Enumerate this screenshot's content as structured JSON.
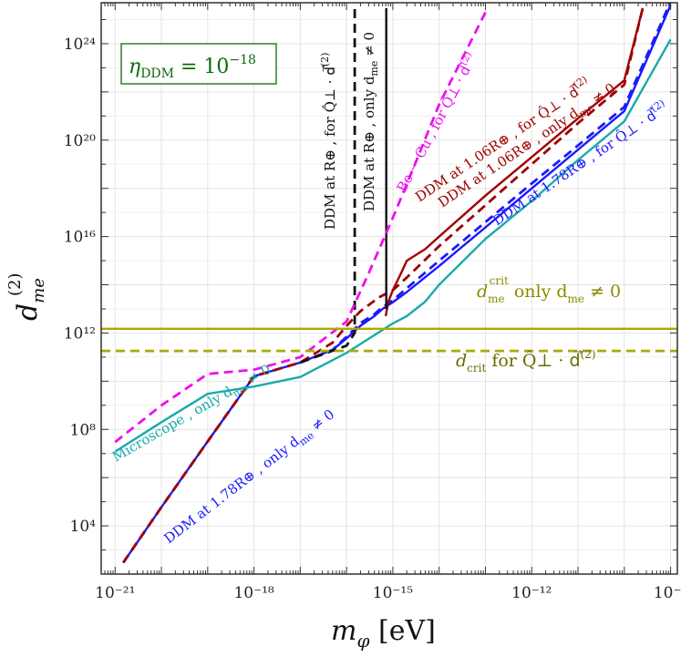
{
  "chart_data": {
    "type": "line",
    "title": "",
    "xlabel": "m_φ [eV]",
    "ylabel": "d_me^(2)",
    "x_scale": "log",
    "y_scale": "log",
    "xlim": [
      5e-22,
      1.4e-09
    ],
    "ylim": [
      100,
      5e+25
    ],
    "grid": true,
    "x_ticks": [
      {
        "value": 1e-21,
        "label": "10⁻²¹"
      },
      {
        "value": 1e-18,
        "label": "10⁻¹⁸"
      },
      {
        "value": 1e-15,
        "label": "10⁻¹⁵"
      },
      {
        "value": 1e-12,
        "label": "10⁻¹²"
      },
      {
        "value": 1e-09,
        "label": "10⁻⁹"
      }
    ],
    "y_ticks": [
      {
        "value": 10000.0,
        "label": "10⁴"
      },
      {
        "value": 100000000.0,
        "label": "10⁸"
      },
      {
        "value": 1000000000000.0,
        "label": "10¹²"
      },
      {
        "value": 1e+16,
        "label": "10¹⁶"
      },
      {
        "value": 1e+20,
        "label": "10²⁰"
      },
      {
        "value": 1e+24,
        "label": "10²⁴"
      }
    ],
    "annotation_box": "η_DDM = 10⁻¹⁸",
    "series": [
      {
        "id": "ddm178_only",
        "label": "DDM at 1.78R⊕ , only d_me ≠ 0",
        "color": "#1a1aff",
        "dash": false,
        "x": [
          1.5e-21,
          1e-20,
          1e-19,
          1e-18,
          1e-17,
          5e-17,
          1e-16,
          2e-16,
          4e-16,
          6e-16,
          1e-15,
          2e-15,
          1e-14,
          1e-13,
          1e-12,
          1e-11,
          1e-10,
          1e-09
        ],
        "y": [
          300.0,
          60000.0,
          32000000.0,
          16000000000.0,
          60000000000.0,
          200000000000.0,
          600000000000.0,
          2000000000000.0,
          5000000000000.0,
          10000000000000.0,
          19000000000000.0,
          50000000000000.0,
          600000000000000.0,
          2.4e+16,
          1e+18,
          4e+19,
          1.6e+21,
          4e+25
        ]
      },
      {
        "id": "ddm178_q",
        "label": "DDM at 1.78R⊕ , for Q̂⊥ · d⃗(2)",
        "color": "#1a1aff",
        "dash": true,
        "x": [
          1.5e-21,
          1e-20,
          1e-19,
          1e-18,
          1e-17,
          5e-17,
          1e-16,
          2e-16,
          4e-16,
          6e-16,
          1e-15,
          1e-14,
          1e-13,
          1e-12,
          1e-11,
          1e-10,
          1e-09
        ],
        "y": [
          300.0,
          60000.0,
          32000000.0,
          16000000000.0,
          60000000000.0,
          200000000000.0,
          700000000000.0,
          2600000000000.0,
          6000000000000.0,
          12000000000000.0,
          23000000000000.0,
          1000000000000000.0,
          4e+16,
          1.6e+18,
          6e+19,
          2.4e+21,
          5.5e+25
        ]
      },
      {
        "id": "ddm106_only",
        "label": "DDM at 1.06R⊕ , only d_me ≠ 0",
        "color": "#a00000",
        "dash": false,
        "x": [
          7e-16,
          8e-16,
          1e-15,
          1.5e-15,
          2e-15,
          5e-15,
          1e-14,
          1e-13,
          1e-12,
          1e-11,
          1e-10,
          2.5e-10
        ],
        "y": [
          5000000000000.0,
          20000000000000.0,
          60000000000000.0,
          300000000000000.0,
          1000000000000000.0,
          3000000000000000.0,
          1e+16,
          5e+17,
          2e+19,
          8e+20,
          3e+22,
          3e+25
        ]
      },
      {
        "id": "ddm106_q",
        "label": "DDM at 1.06R⊕ , for Q̂⊥ · d⃗(2)",
        "color": "#a00000",
        "dash": true,
        "x": [
          1.5e-21,
          1e-20,
          1e-19,
          1e-18,
          1e-17,
          5e-17,
          1e-16,
          2e-16,
          5e-16,
          1e-15,
          2e-15,
          1e-14,
          1e-13,
          1e-12,
          1e-11,
          1e-10,
          2.5e-10
        ],
        "y": [
          300.0,
          60000.0,
          32000000.0,
          16000000000.0,
          60000000000.0,
          400000000000.0,
          2000000000000.0,
          8000000000000.0,
          30000000000000.0,
          60000000000000.0,
          200000000000000.0,
          4000000000000000.0,
          2e+17,
          1e+19,
          5e+20,
          2e+22,
          3e+25
        ]
      },
      {
        "id": "ddm_re_only",
        "label": "DDM at R⊕ , only d_me ≠ 0",
        "color": "#111111",
        "dash": false,
        "x": [
          7.2e-16,
          7.2e-16
        ],
        "y": [
          10000000000000.0,
          3e+25
        ]
      },
      {
        "id": "ddm_re_q",
        "label": "DDM at R⊕ , for Q̂⊥ · d⃗(2)",
        "color": "#111111",
        "dash": true,
        "x": [
          1e-17,
          1e-16,
          1.5e-16,
          1.5e-16
        ],
        "y": [
          60000000000.0,
          300000000000.0,
          1000000000000.0,
          3e+25
        ]
      },
      {
        "id": "microscope",
        "label": "Microscope , only d_me ≠ 0",
        "color": "#19aaaa",
        "dash": false,
        "x": [
          1e-21,
          1e-20,
          1e-19,
          1e-18,
          1e-17,
          1e-16,
          1e-15,
          2e-15,
          5e-15,
          1e-14,
          1e-13,
          1e-12,
          1e-11,
          1e-10,
          1e-09
        ],
        "y": [
          12000000.0,
          200000000.0,
          3000000000.0,
          6000000000.0,
          15000000000.0,
          150000000000.0,
          2500000000000.0,
          5000000000000.0,
          20000000000000.0,
          100000000000000.0,
          8000000000000000.0,
          3e+17,
          1.5e+19,
          6e+20,
          1.5e+24
        ]
      },
      {
        "id": "becu",
        "label": "Be − Cu , for Q̂⊥ · d⃗(2)",
        "color": "#ee10ee",
        "dash": true,
        "x": [
          1e-21,
          1e-20,
          1e-19,
          1e-18,
          1e-17,
          1e-16,
          3e-16,
          1e-15,
          3e-15,
          1e-14,
          1e-13
        ],
        "y": [
          30000000.0,
          1000000000.0,
          20000000000.0,
          30000000000.0,
          100000000000.0,
          3000000000000.0,
          300000000000000.0,
          6e+16,
          1e+19,
          3e+21,
          2e+25
        ]
      },
      {
        "id": "dcrit_only",
        "label": "d_me^crit only d_me ≠ 0",
        "color": "#aaaa00",
        "dash": false,
        "x": [
          5e-22,
          1.4e-09
        ],
        "y": [
          1500000000000.0,
          1500000000000.0
        ]
      },
      {
        "id": "dcrit_q",
        "label": "d_crit for Q̂⊥ · d⃗(2)",
        "color": "#aaaa00",
        "dash": true,
        "x": [
          5e-22,
          1.4e-09
        ],
        "y": [
          180000000000.0,
          180000000000.0
        ]
      }
    ]
  },
  "labels": {
    "ddm178_only": "DDM at 1.78R⊕ , only d",
    "ddm178_only_sub": "me",
    "ddm178_only_tail": " ≠ 0",
    "ddm178_q": "DDM at 1.78R⊕ , for Q̂⊥ · d⃗",
    "ddm178_q_sup": "(2)",
    "ddm106_only": "DDM at 1.06R⊕ , only d",
    "ddm106_only_sub": "me",
    "ddm106_only_tail": " ≠ 0",
    "ddm106_q": "DDM at 1.06R⊕ , for Q̂⊥ · d⃗",
    "ddm106_q_sup": "(2)",
    "ddm_re_only": "DDM at R⊕ , only d",
    "ddm_re_only_sub": "me",
    "ddm_re_only_tail": " ≠ 0",
    "ddm_re_q": "DDM at R⊕ , for Q̂⊥ · d⃗",
    "ddm_re_q_sup": "(2)",
    "microscope": "Microscope , only d",
    "microscope_sub": "me",
    "microscope_tail": " ≠ 0",
    "becu": "Be − Cu , for Q̂⊥ · d⃗",
    "becu_sup": "(2)",
    "dcrit_only_main": "d",
    "dcrit_only_sub": "me",
    "dcrit_only_sup": "crit",
    "dcrit_only_tail": " only d",
    "dcrit_only_tail_sub": "me",
    "dcrit_only_tail_end": " ≠ 0",
    "dcrit_q_main": "d",
    "dcrit_q_sub": "crit",
    "dcrit_q_tail": "  for Q̂⊥ · d⃗",
    "dcrit_q_sup": "(2)",
    "eta_main": "η",
    "eta_sub": "DDM",
    "eta_tail": " = 10",
    "eta_sup": "−18",
    "ylabel_main": "d",
    "ylabel_sub": "me",
    "ylabel_sup": "(2)",
    "xlabel_main": "m",
    "xlabel_sub": "φ",
    "xlabel_unit": " [eV]"
  },
  "colors": {
    "blue": "#1a1aff",
    "darkred": "#a00000",
    "black": "#111111",
    "teal": "#19aaaa",
    "magenta": "#ee10ee",
    "olive": "#aaaa00",
    "olive_text": "#6b6b00",
    "green_text": "#0a6a0a"
  }
}
